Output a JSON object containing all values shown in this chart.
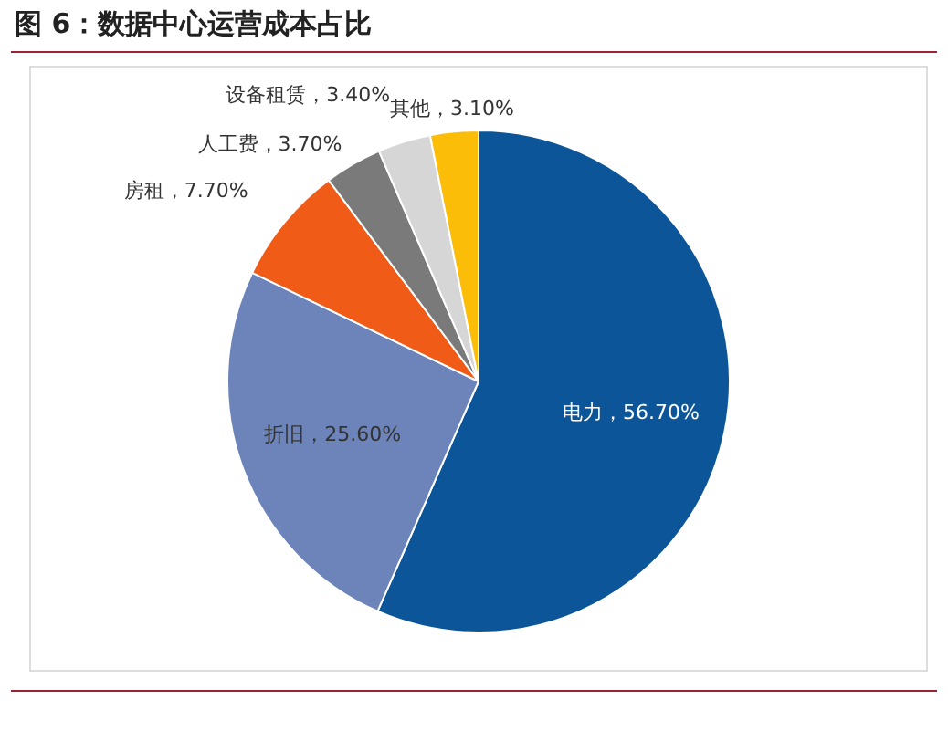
{
  "chart_data": {
    "type": "pie",
    "title": "图 6：数据中心运营成本占比",
    "categories": [
      "电力",
      "折旧",
      "房租",
      "人工费",
      "设备租赁",
      "其他"
    ],
    "values": [
      56.7,
      25.6,
      7.7,
      3.7,
      3.4,
      3.1
    ],
    "colors": [
      "#0c5598",
      "#6c84ba",
      "#f05c18",
      "#7a7a7a",
      "#d6d6d6",
      "#fbbd08"
    ],
    "value_labels": [
      "56.70%",
      "25.60%",
      "7.70%",
      "3.70%",
      "3.40%",
      "3.10%"
    ],
    "legend": false
  }
}
